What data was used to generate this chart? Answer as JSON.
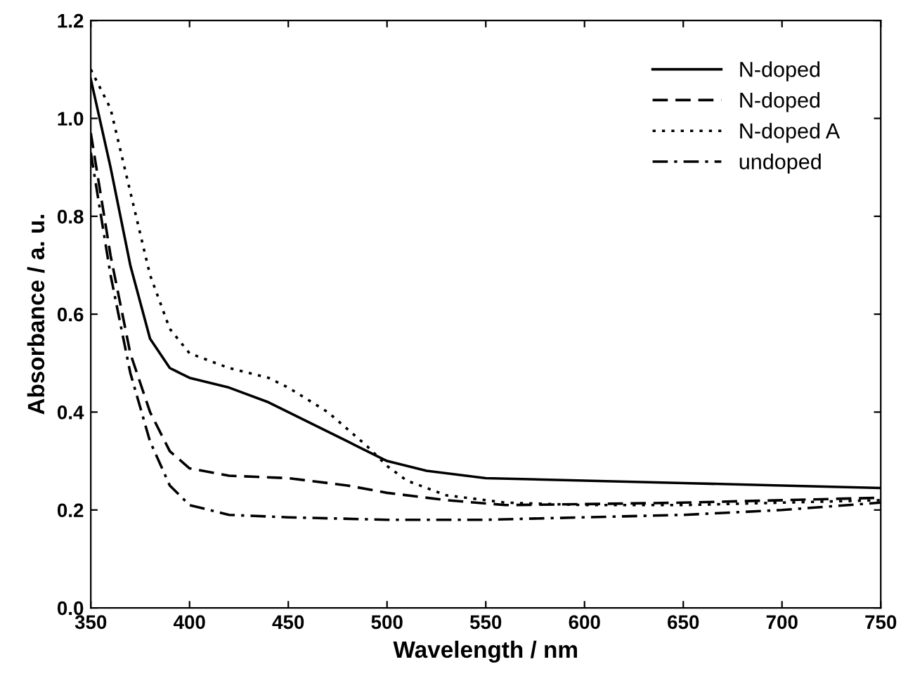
{
  "chart_data": {
    "type": "line",
    "xlabel": "Wavelength / nm",
    "ylabel": "Absorbance / a. u.",
    "xlim": [
      350,
      750
    ],
    "ylim": [
      0,
      1.2
    ],
    "xticks": [
      350,
      400,
      450,
      500,
      550,
      600,
      650,
      700,
      750
    ],
    "yticks": [
      {
        "value": 0,
        "label": "0.0"
      },
      {
        "value": 0.2,
        "label": "0.2"
      },
      {
        "value": 0.4,
        "label": "0.4"
      },
      {
        "value": 0.6,
        "label": "0.6"
      },
      {
        "value": 0.8,
        "label": "0.8"
      },
      {
        "value": 1.0,
        "label": "1.0"
      },
      {
        "value": 1.2,
        "label": "1.2"
      }
    ],
    "legend": "top right",
    "grid": false,
    "marker": "none",
    "series": [
      {
        "name": "N-doped",
        "color": "#000000",
        "line_style": "solid",
        "x": [
          350,
          360,
          370,
          380,
          390,
          400,
          420,
          440,
          460,
          480,
          500,
          520,
          550,
          600,
          650,
          700,
          750
        ],
        "values": [
          1.08,
          0.9,
          0.7,
          0.55,
          0.49,
          0.47,
          0.45,
          0.42,
          0.38,
          0.34,
          0.3,
          0.28,
          0.265,
          0.26,
          0.255,
          0.25,
          0.245
        ]
      },
      {
        "name": "N-doped",
        "color": "#000000",
        "line_style": "dashed",
        "x": [
          350,
          360,
          370,
          380,
          390,
          400,
          420,
          450,
          480,
          500,
          530,
          560,
          600,
          650,
          700,
          750
        ],
        "values": [
          0.97,
          0.72,
          0.52,
          0.4,
          0.32,
          0.285,
          0.27,
          0.265,
          0.25,
          0.235,
          0.22,
          0.21,
          0.212,
          0.215,
          0.22,
          0.225
        ]
      },
      {
        "name": "N-doped A",
        "color": "#000000",
        "line_style": "dotted",
        "x": [
          350,
          360,
          370,
          380,
          390,
          400,
          420,
          440,
          450,
          470,
          490,
          500,
          510,
          530,
          560,
          600,
          650,
          700,
          750
        ],
        "values": [
          1.1,
          1.02,
          0.85,
          0.68,
          0.57,
          0.52,
          0.49,
          0.47,
          0.45,
          0.4,
          0.33,
          0.29,
          0.26,
          0.23,
          0.215,
          0.21,
          0.21,
          0.215,
          0.22
        ]
      },
      {
        "name": "undoped",
        "color": "#000000",
        "line_style": "dashdot",
        "x": [
          350,
          360,
          370,
          380,
          390,
          400,
          420,
          450,
          500,
          550,
          600,
          650,
          700,
          750
        ],
        "values": [
          0.93,
          0.68,
          0.48,
          0.34,
          0.25,
          0.21,
          0.19,
          0.185,
          0.18,
          0.18,
          0.185,
          0.19,
          0.2,
          0.215
        ]
      }
    ]
  }
}
